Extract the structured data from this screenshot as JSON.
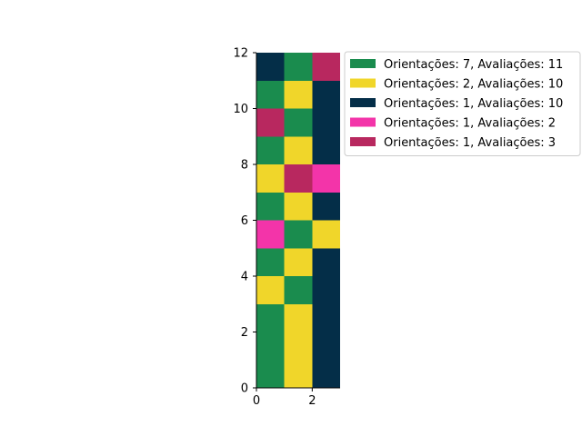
{
  "chart_data": {
    "type": "heatmap",
    "title": "",
    "xlabel": "",
    "ylabel": "",
    "xlim": [
      0,
      3
    ],
    "ylim": [
      0,
      12
    ],
    "xticks": [
      0,
      2
    ],
    "yticks": [
      0,
      2,
      4,
      6,
      8,
      10,
      12
    ],
    "grid": false,
    "legend_position": "outside-right-top",
    "legend": [
      {
        "key": "a",
        "label": "Orientações: 7, Avaliações: 11",
        "color": "#1a8c4e"
      },
      {
        "key": "b",
        "label": "Orientações: 2, Avaliações: 10",
        "color": "#f0d62a"
      },
      {
        "key": "c",
        "label": "Orientações: 1, Avaliações: 10",
        "color": "#042e48"
      },
      {
        "key": "d",
        "label": "Orientações: 1, Avaliações: 2",
        "color": "#f334a9"
      },
      {
        "key": "e",
        "label": "Orientações: 1, Avaliações: 3",
        "color": "#b8285f"
      }
    ],
    "columns": 3,
    "grid_rows_bottom_to_top": [
      [
        "a",
        "b",
        "c"
      ],
      [
        "a",
        "b",
        "c"
      ],
      [
        "a",
        "b",
        "c"
      ],
      [
        "b",
        "a",
        "c"
      ],
      [
        "a",
        "b",
        "c"
      ],
      [
        "d",
        "a",
        "b"
      ],
      [
        "a",
        "b",
        "c"
      ],
      [
        "b",
        "e",
        "d"
      ],
      [
        "a",
        "b",
        "c"
      ],
      [
        "e",
        "a",
        "c"
      ],
      [
        "a",
        "b",
        "c"
      ],
      [
        "c",
        "a",
        "e"
      ]
    ]
  }
}
